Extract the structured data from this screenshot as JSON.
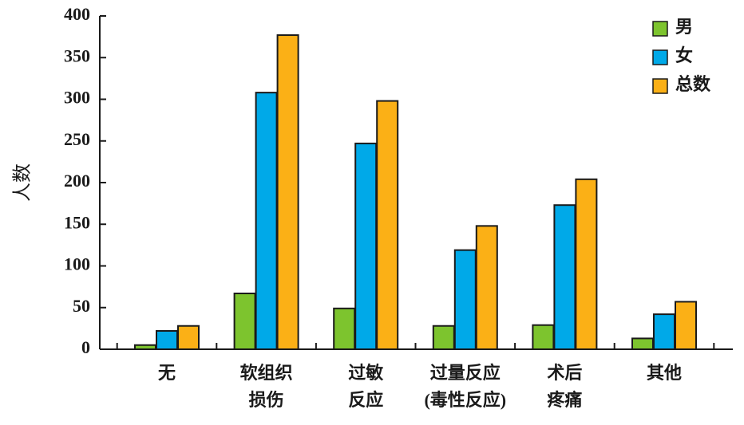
{
  "chart_data": {
    "type": "bar",
    "y_label": "人数",
    "categories": [
      [
        "无"
      ],
      [
        "软组织",
        "损伤"
      ],
      [
        "过敏",
        "反应"
      ],
      [
        "过量反应",
        "(毒性反应)"
      ],
      [
        "术后",
        "疼痛"
      ],
      [
        "其他"
      ]
    ],
    "series": [
      {
        "name": "男",
        "color": "#7dc42e",
        "values": [
          5,
          67,
          49,
          28,
          29,
          13
        ]
      },
      {
        "name": "女",
        "color": "#00a9e8",
        "values": [
          22,
          308,
          247,
          119,
          173,
          42
        ]
      },
      {
        "name": "总数",
        "color": "#fbb016",
        "values": [
          28,
          377,
          298,
          148,
          204,
          57
        ]
      }
    ],
    "ylim": [
      0,
      400
    ],
    "yticks": [
      0,
      50,
      100,
      150,
      200,
      250,
      300,
      350,
      400
    ]
  }
}
